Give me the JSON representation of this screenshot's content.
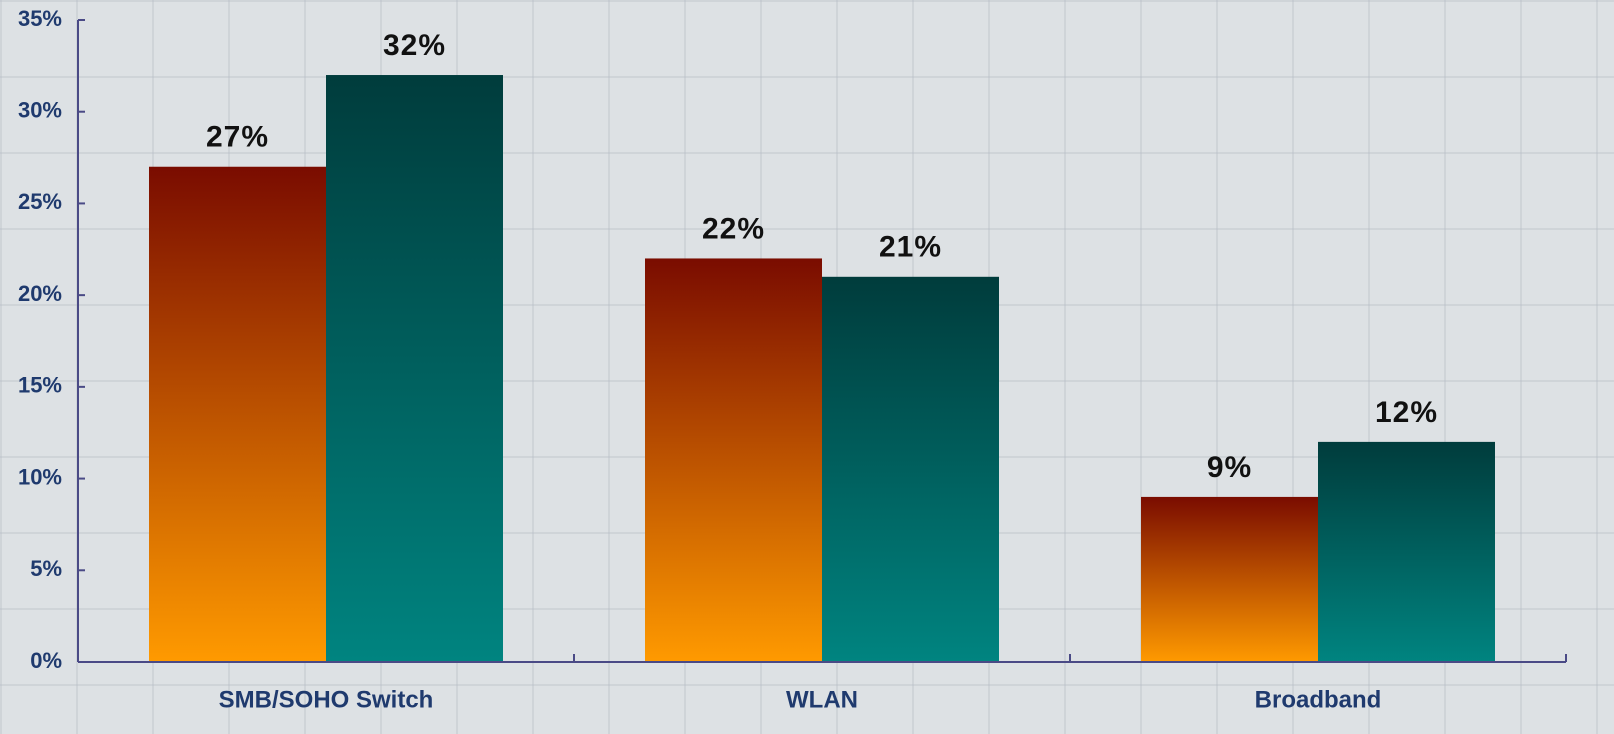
{
  "chart_data": {
    "type": "bar",
    "categories": [
      "SMB/SOHO Switch",
      "WLAN",
      "Broadband"
    ],
    "series": [
      {
        "color": [
          "#7a0c00",
          "#ff9a00"
        ],
        "values": [
          27,
          22,
          9
        ],
        "value_labels": [
          "27%",
          "22%",
          "9%"
        ]
      },
      {
        "color": [
          "#003c3c",
          "#008480"
        ],
        "values": [
          32,
          21,
          12
        ],
        "value_labels": [
          "32%",
          "21%",
          "12%"
        ]
      }
    ],
    "ylim": [
      0,
      35
    ],
    "yticks": [
      {
        "value": 0,
        "label": "0%"
      },
      {
        "value": 5,
        "label": "5%"
      },
      {
        "value": 10,
        "label": "10%"
      },
      {
        "value": 15,
        "label": "15%"
      },
      {
        "value": 20,
        "label": "20%"
      },
      {
        "value": 25,
        "label": "25%"
      },
      {
        "value": 30,
        "label": "30%"
      },
      {
        "value": 35,
        "label": "35%"
      }
    ]
  }
}
